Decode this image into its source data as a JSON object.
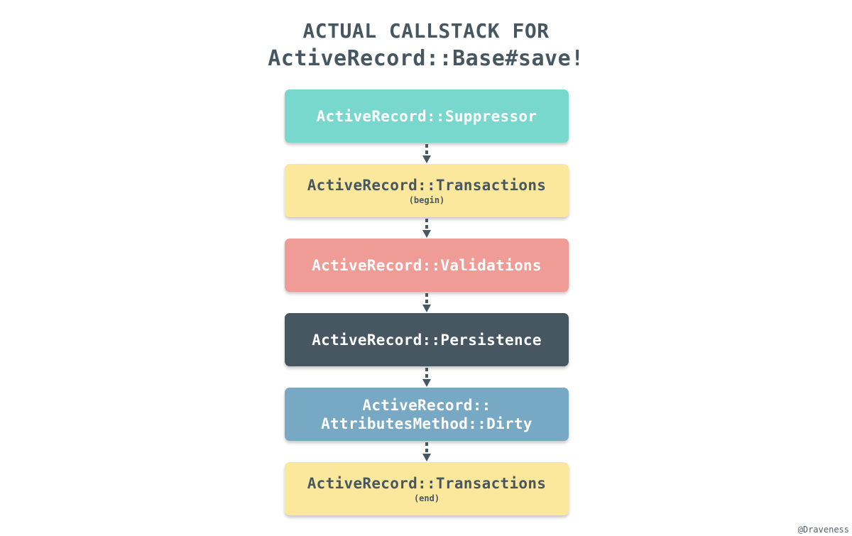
{
  "title": {
    "line1": "ACTUAL CALLSTACK FOR",
    "line2": "ActiveRecord::Base#save!"
  },
  "colors": {
    "title": "#475761",
    "teal": "#79d8cd",
    "yellow": "#fbe89c",
    "salmon": "#f09c96",
    "slate": "#475761",
    "blue": "#77a8c4",
    "arrow": "#475761"
  },
  "boxes": [
    {
      "label": "ActiveRecord::Suppressor",
      "sub": "",
      "fill": "#79d8cd",
      "text_color": "#ffffff"
    },
    {
      "label": "ActiveRecord::Transactions",
      "sub": "(begin)",
      "fill": "#fbe89c",
      "text_color": "#475761"
    },
    {
      "label": "ActiveRecord::Validations",
      "sub": "",
      "fill": "#f09c96",
      "text_color": "#ffffff"
    },
    {
      "label": "ActiveRecord::Persistence",
      "sub": "",
      "fill": "#475761",
      "text_color": "#ffffff"
    },
    {
      "label": "ActiveRecord::\nAttributesMethod::Dirty",
      "sub": "",
      "fill": "#77a8c4",
      "text_color": "#ffffff"
    },
    {
      "label": "ActiveRecord::Transactions",
      "sub": "(end)",
      "fill": "#fbe89c",
      "text_color": "#475761"
    }
  ],
  "credit": "@Draveness"
}
